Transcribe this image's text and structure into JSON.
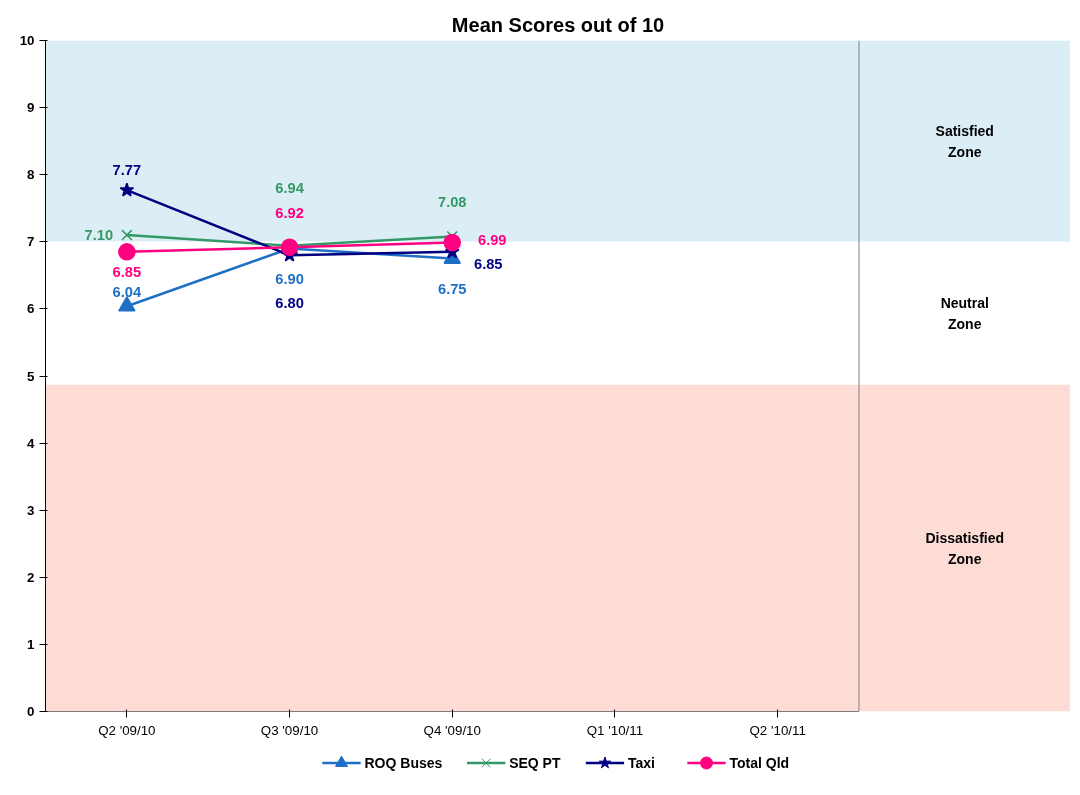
{
  "chart_data": {
    "type": "line",
    "title": "Mean Scores out of 10",
    "categories": [
      "Q2 '09/10",
      "Q3 '09/10",
      "Q4 '09/10",
      "Q1 '10/11",
      "Q2 '10/11"
    ],
    "series": [
      {
        "name": "ROQ Buses",
        "color": "#1f6fc5",
        "marker": "triangle",
        "values": [
          6.04,
          6.9,
          6.75,
          null,
          null
        ],
        "value_labels": [
          "6.04",
          "6.90",
          "6.75",
          null,
          null
        ]
      },
      {
        "name": "SEQ PT",
        "color": "#339966",
        "marker": "cross",
        "values": [
          7.1,
          6.94,
          7.08,
          null,
          null
        ],
        "value_labels": [
          "7.10",
          "6.94",
          "7.08",
          null,
          null
        ]
      },
      {
        "name": "Taxi",
        "color": "#000080",
        "marker": "star",
        "values": [
          7.77,
          6.8,
          6.85,
          null,
          null
        ],
        "value_labels": [
          "7.77",
          "6.80",
          "6.85",
          null,
          null
        ]
      },
      {
        "name": "Total Qld",
        "color": "#ff0080",
        "marker": "circle",
        "values": [
          6.85,
          6.92,
          6.99,
          null,
          null
        ],
        "value_labels": [
          "6.85",
          "6.92",
          "6.99",
          null,
          null
        ]
      }
    ],
    "ylim": [
      0,
      10
    ],
    "yticks": [
      0,
      1,
      2,
      3,
      4,
      5,
      6,
      7,
      8,
      9,
      10
    ],
    "grid": false,
    "legend": "bottom",
    "line_style": "solid",
    "bands": [
      {
        "axis": "y",
        "from": 7,
        "to": 10,
        "label": "Satisfied Zone",
        "color": "#dbeef6"
      },
      {
        "axis": "y",
        "from": 4.87,
        "to": 7,
        "label": "Neutral Zone",
        "color": "#ffffff"
      },
      {
        "axis": "y",
        "from": 0,
        "to": 4.87,
        "label": "Dissatisfied Zone",
        "color": "#fcdcd5"
      }
    ]
  }
}
